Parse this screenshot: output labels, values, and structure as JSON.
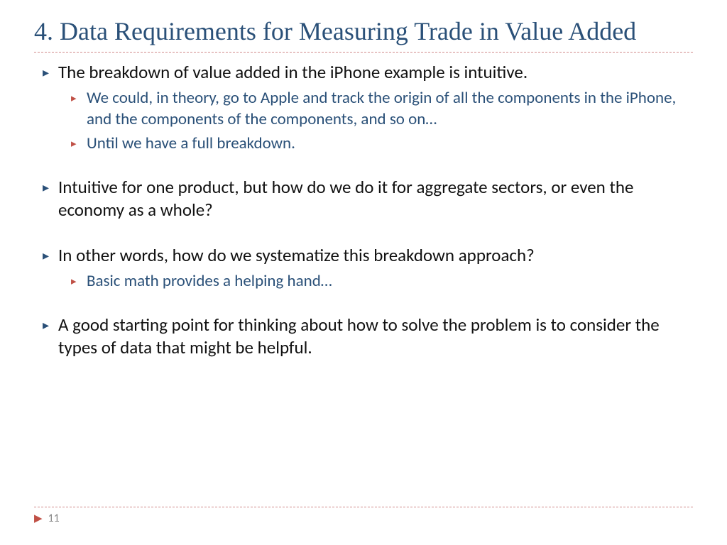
{
  "title": "4. Data Requirements for Measuring Trade in Value Added",
  "bullets": [
    {
      "level": 1,
      "text": "The breakdown of value added in the iPhone example is intuitive."
    },
    {
      "level": 2,
      "text": "We could, in theory, go to Apple and track the origin of all the components in the iPhone, and the components of the components, and so on…"
    },
    {
      "level": 2,
      "text": "Until we have a full breakdown."
    },
    {
      "level": 0,
      "text": ""
    },
    {
      "level": 1,
      "text": "Intuitive for one product, but how do we do it for aggregate sectors, or even the economy as a whole?"
    },
    {
      "level": 0,
      "text": ""
    },
    {
      "level": 1,
      "text": "In other words, how do we systematize this breakdown approach?"
    },
    {
      "level": 2,
      "text": "Basic math provides a helping hand…"
    },
    {
      "level": 0,
      "text": ""
    },
    {
      "level": 1,
      "text": "A good starting point for thinking about how to solve the problem is to consider the types of data that might be helpful."
    }
  ],
  "page_number": "11",
  "colors": {
    "title": "#2a5078",
    "body": "#111111",
    "sub": "#2a5078",
    "accent_blue": "#2a5078",
    "accent_red": "#c05046",
    "divider": "#d08a8a",
    "page_num": "#888888",
    "background": "#ffffff"
  },
  "fonts": {
    "title_family": "Georgia serif",
    "body_family": "Gill Sans",
    "title_size_pt": 28,
    "l1_size_pt": 19,
    "l2_size_pt": 17
  }
}
